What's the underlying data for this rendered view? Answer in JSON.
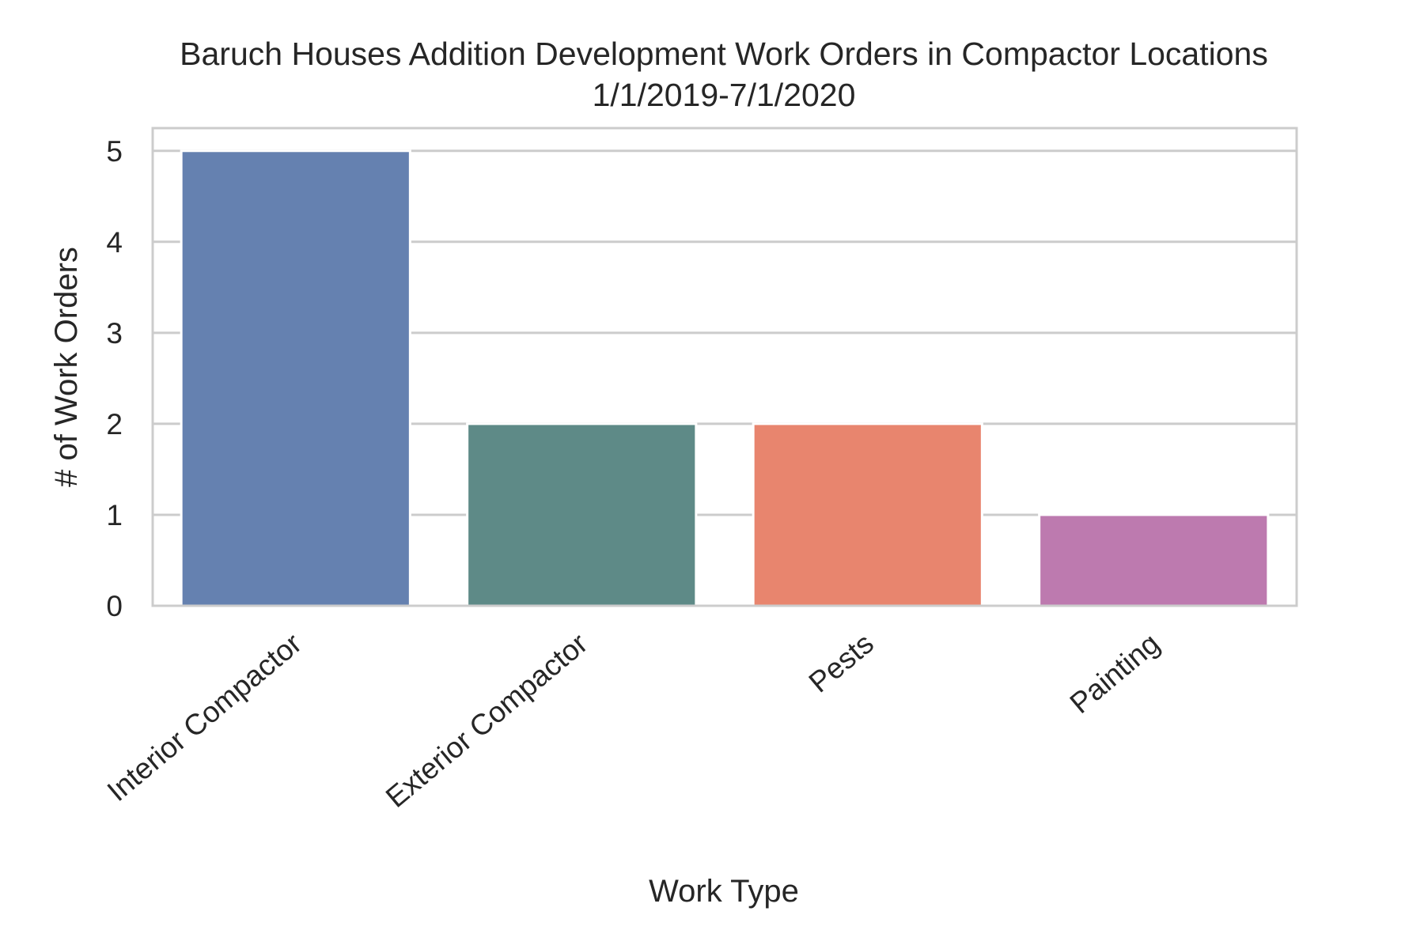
{
  "chart_data": {
    "type": "bar",
    "title": "Baruch Houses Addition Development Work Orders in Compactor Locations",
    "subtitle": "1/1/2019-7/1/2020",
    "xlabel": "Work Type",
    "ylabel": "# of Work Orders",
    "categories": [
      "Interior Compactor",
      "Exterior Compactor",
      "Pests",
      "Painting"
    ],
    "values": [
      5,
      2,
      2,
      1
    ],
    "colors": [
      "#6581b0",
      "#5e8a87",
      "#e8856e",
      "#bd7aaf"
    ],
    "ylim": [
      0,
      5.25
    ],
    "yticks": [
      0,
      1,
      2,
      3,
      4,
      5
    ],
    "grid": true,
    "legend": null
  }
}
